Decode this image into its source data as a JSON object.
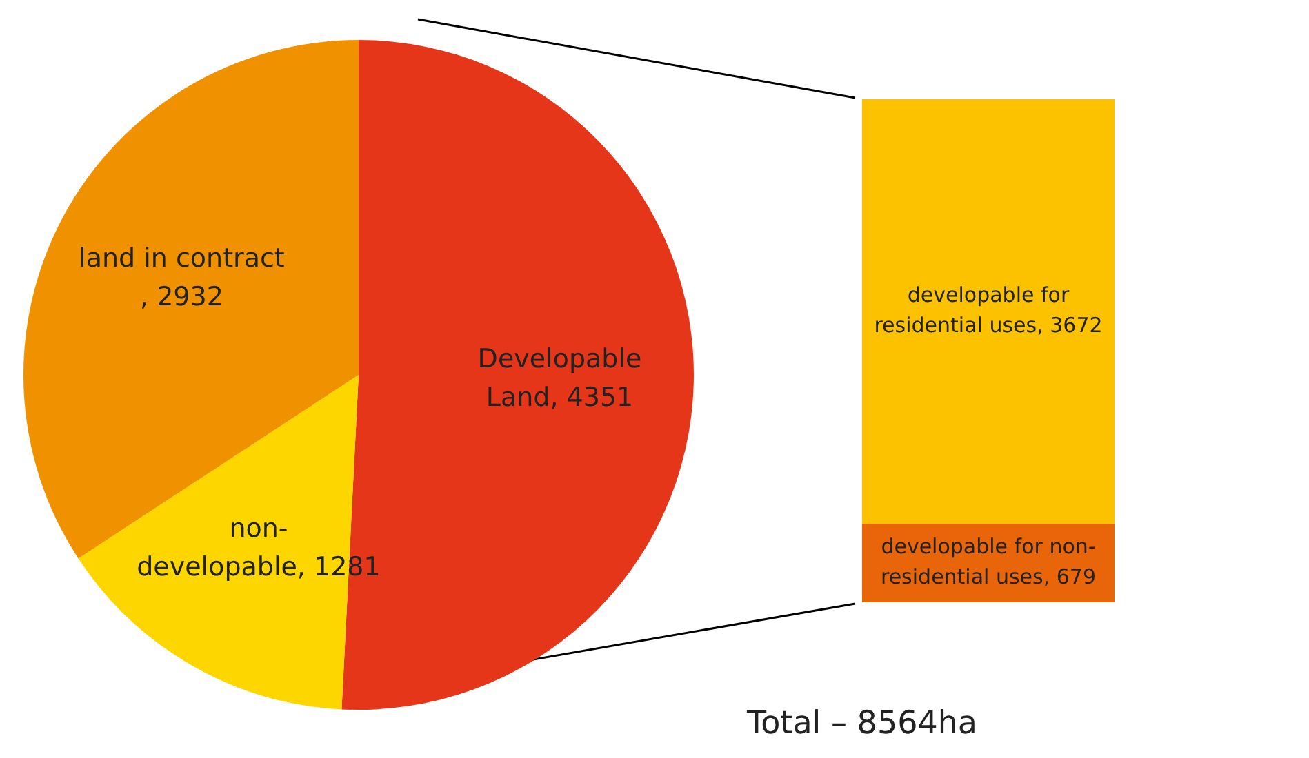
{
  "chart_data": [
    {
      "type": "pie",
      "categories": [
        "Developable Land",
        "non-developable",
        "land in contract"
      ],
      "values": [
        4351,
        1281,
        2932
      ],
      "colors": [
        "#e5361a",
        "#fdd600",
        "#f09100"
      ],
      "value_labels": [
        ", 4351",
        ", 1281",
        ", 2932"
      ],
      "legend": false,
      "annotations": [
        "Total – 8564ha"
      ]
    },
    {
      "type": "bar",
      "stacked": true,
      "categories": [
        null
      ],
      "tick_labels": false,
      "legend": false,
      "series": [
        {
          "name": "developable for non-residential uses",
          "color": "#e8650a",
          "values": [
            679
          ],
          "value_labels": [
            ", 679"
          ]
        },
        {
          "name": "developable for residential uses",
          "color": "#fcc200",
          "values": [
            3672
          ],
          "value_labels": [
            ", 3672"
          ]
        }
      ]
    }
  ]
}
